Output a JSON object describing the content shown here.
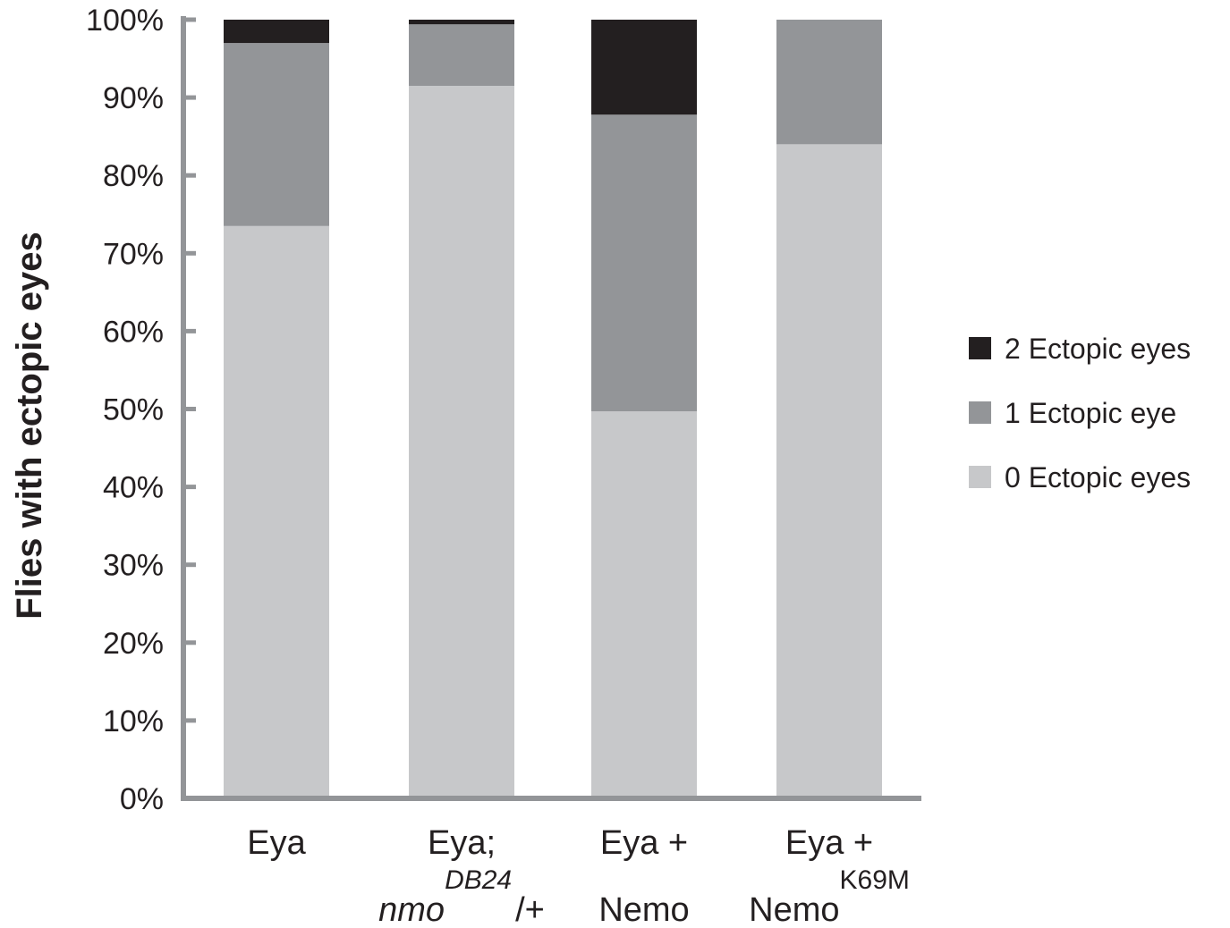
{
  "chart_data": {
    "type": "bar",
    "stacked": true,
    "ylabel": "Flies with ectopic eyes",
    "xlabel": "",
    "ylim": [
      0,
      100
    ],
    "yticks": [
      "0%",
      "10%",
      "20%",
      "30%",
      "40%",
      "50%",
      "60%",
      "70%",
      "80%",
      "90%",
      "100%"
    ],
    "categories": [
      {
        "line1": "Eya",
        "line2_prefix": "",
        "line2_sup": "",
        "line2_suffix": "",
        "line2_prefix_italic": false
      },
      {
        "line1": "Eya;",
        "line2_prefix": "nmo",
        "line2_sup": "DB24",
        "line2_suffix": "/+",
        "line2_prefix_italic": true
      },
      {
        "line1": "Eya +",
        "line2_prefix": "Nemo",
        "line2_sup": "",
        "line2_suffix": "",
        "line2_prefix_italic": false
      },
      {
        "line1": "Eya +",
        "line2_prefix": "Nemo",
        "line2_sup": "K69M",
        "line2_suffix": "",
        "line2_prefix_italic": false
      }
    ],
    "series": [
      {
        "name": "0 Ectopic eyes",
        "color": "#c7c8ca",
        "values": [
          73.5,
          91.5,
          49.7,
          84.0
        ]
      },
      {
        "name": "1 Ectopic eye",
        "color": "#939598",
        "values": [
          23.5,
          7.9,
          38.1,
          16.0
        ]
      },
      {
        "name": "2 Ectopic eyes",
        "color": "#231f20",
        "values": [
          3.0,
          0.6,
          12.2,
          0.0
        ]
      }
    ],
    "legend_order": [
      "2 Ectopic eyes",
      "1 Ectopic eye",
      "0 Ectopic eyes"
    ],
    "legend_position": "right",
    "grid": false,
    "axis_color": "#939598"
  }
}
